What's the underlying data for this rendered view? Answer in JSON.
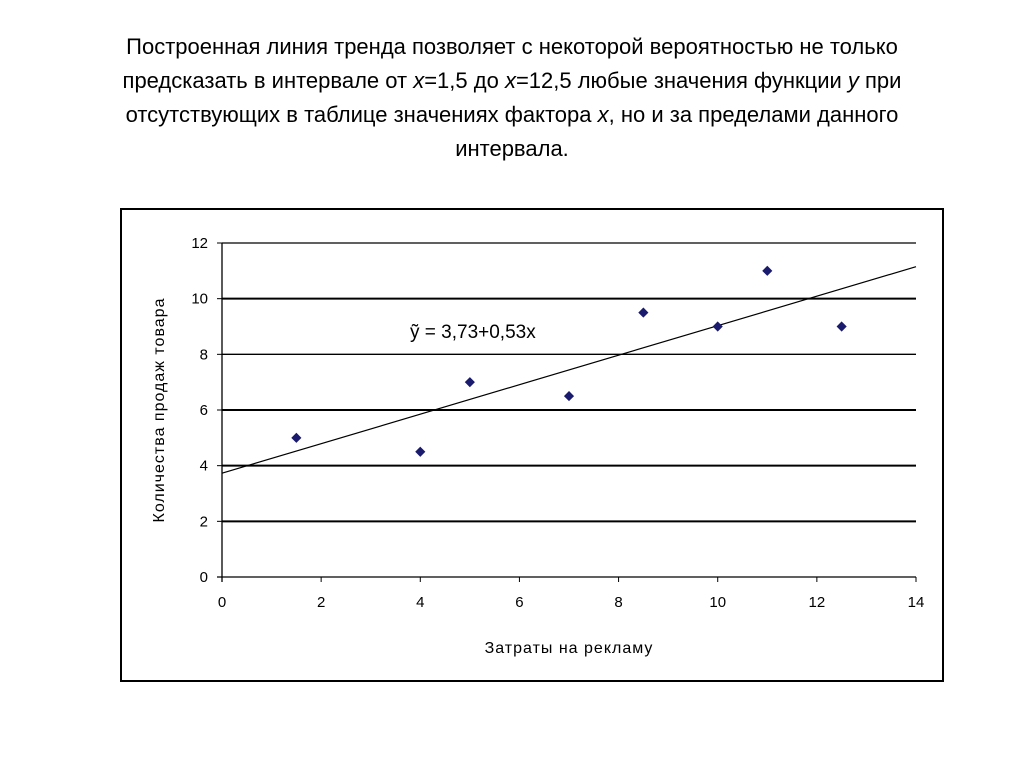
{
  "slide": {
    "title_parts": [
      "Построенная линия тренда позволяет с некоторой вероятностью не только предсказать в интервале от ",
      "x",
      "=1,5 до ",
      "x",
      "=12,5 любые значения функции ",
      "y",
      " при отсутствующих в таблице значениях фактора ",
      "x",
      ", но и за пределами данного интервала."
    ]
  },
  "chart_data": {
    "type": "scatter",
    "xlabel": "Затраты на рекламу",
    "ylabel": "Количества продаж товара",
    "xlim": [
      0,
      14
    ],
    "ylim": [
      0,
      12
    ],
    "x_ticks": [
      0,
      2,
      4,
      6,
      8,
      10,
      12,
      14
    ],
    "y_ticks": [
      0,
      2,
      4,
      6,
      8,
      10,
      12
    ],
    "x_tick_labels": [
      "0",
      "2",
      "4",
      "6",
      "8",
      "10",
      "12",
      "14"
    ],
    "y_tick_labels": [
      "0",
      "2",
      "4",
      "6",
      "8",
      "10",
      "12"
    ],
    "grid": "horizontal",
    "points": [
      {
        "x": 1.5,
        "y": 5
      },
      {
        "x": 4,
        "y": 4.5
      },
      {
        "x": 5,
        "y": 7
      },
      {
        "x": 7,
        "y": 6.5
      },
      {
        "x": 8.5,
        "y": 9.5
      },
      {
        "x": 10,
        "y": 9
      },
      {
        "x": 11,
        "y": 11
      },
      {
        "x": 12.5,
        "y": 9
      }
    ],
    "trendline": {
      "intercept": 3.73,
      "slope": 0.53,
      "equation_label": "ỹ = 3,73+0,53x"
    },
    "colors": {
      "marker": "#1a1a6e",
      "line": "#000000",
      "grid": "#000000"
    }
  }
}
